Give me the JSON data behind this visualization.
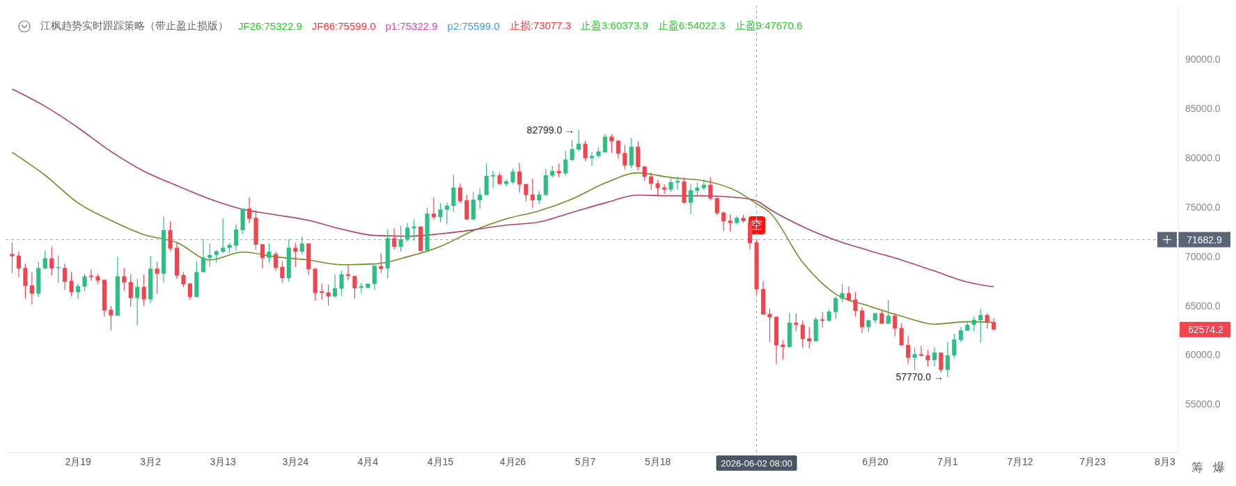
{
  "chart_data": {
    "type": "candlestick",
    "title": "江枫趋势实时跟踪策略（带止盈止损版）",
    "x": [
      "2026-02-09",
      "2026-02-10",
      "2026-02-11",
      "2026-02-12",
      "2026-02-13",
      "2026-02-14",
      "2026-02-15",
      "2026-02-16",
      "2026-02-17",
      "2026-02-18",
      "2026-02-19",
      "2026-02-20",
      "2026-02-21",
      "2026-02-22",
      "2026-02-23",
      "2026-02-24",
      "2026-02-25",
      "2026-02-26",
      "2026-02-27",
      "2026-02-28",
      "2026-03-01",
      "2026-03-02",
      "2026-03-03",
      "2026-03-04",
      "2026-03-05",
      "2026-03-06",
      "2026-03-07",
      "2026-03-08",
      "2026-03-09",
      "2026-03-10",
      "2026-03-11",
      "2026-03-12",
      "2026-03-13",
      "2026-03-14",
      "2026-03-15",
      "2026-03-16",
      "2026-03-17",
      "2026-03-18",
      "2026-03-19",
      "2026-03-20",
      "2026-03-21",
      "2026-03-22",
      "2026-03-23",
      "2026-03-24",
      "2026-03-25",
      "2026-03-26",
      "2026-03-27",
      "2026-03-28",
      "2026-03-29",
      "2026-03-30",
      "2026-03-31",
      "2026-04-01",
      "2026-04-02",
      "2026-04-03",
      "2026-04-04",
      "2026-04-05",
      "2026-04-06",
      "2026-04-07",
      "2026-04-08",
      "2026-04-09",
      "2026-04-10",
      "2026-04-11",
      "2026-04-12",
      "2026-04-13",
      "2026-04-14",
      "2026-04-15",
      "2026-04-16",
      "2026-04-17",
      "2026-04-18",
      "2026-04-19",
      "2026-04-20",
      "2026-04-21",
      "2026-04-22",
      "2026-04-23",
      "2026-04-24",
      "2026-04-25",
      "2026-04-26",
      "2026-04-27",
      "2026-04-28",
      "2026-04-29",
      "2026-04-30",
      "2026-05-01",
      "2026-05-02",
      "2026-05-03",
      "2026-05-04",
      "2026-05-05",
      "2026-05-06",
      "2026-05-07",
      "2026-05-08",
      "2026-05-09",
      "2026-05-10",
      "2026-05-11",
      "2026-05-12",
      "2026-05-13",
      "2026-05-14",
      "2026-05-15",
      "2026-05-16",
      "2026-05-17",
      "2026-05-18",
      "2026-05-19",
      "2026-05-20",
      "2026-05-21",
      "2026-05-22",
      "2026-05-23",
      "2026-05-24",
      "2026-05-25",
      "2026-05-26",
      "2026-05-27",
      "2026-05-28",
      "2026-05-29",
      "2026-05-30",
      "2026-05-31",
      "2026-06-01",
      "2026-06-02",
      "2026-06-03",
      "2026-06-04",
      "2026-06-05",
      "2026-06-06",
      "2026-06-07",
      "2026-06-08",
      "2026-06-09",
      "2026-06-10",
      "2026-06-11",
      "2026-06-12",
      "2026-06-13",
      "2026-06-14",
      "2026-06-15",
      "2026-06-16",
      "2026-06-17",
      "2026-06-18",
      "2026-06-19",
      "2026-06-20",
      "2026-06-21",
      "2026-06-22",
      "2026-06-23",
      "2026-06-24",
      "2026-06-25",
      "2026-06-26",
      "2026-06-27",
      "2026-06-28",
      "2026-06-29",
      "2026-06-30",
      "2026-07-01",
      "2026-07-02",
      "2026-07-03",
      "2026-07-04",
      "2026-07-05",
      "2026-07-06",
      "2026-07-07",
      "2026-07-08"
    ],
    "ohlc": [
      [
        70230,
        71410,
        68290,
        69990
      ],
      [
        70060,
        70490,
        67890,
        68760
      ],
      [
        68810,
        69240,
        65740,
        66990
      ],
      [
        67040,
        68390,
        65100,
        66210
      ],
      [
        66210,
        69420,
        65860,
        68810
      ],
      [
        68760,
        70580,
        68720,
        69800
      ],
      [
        69800,
        70940,
        68060,
        68760
      ],
      [
        68790,
        70090,
        67300,
        68900
      ],
      [
        68810,
        69240,
        66590,
        67420
      ],
      [
        67510,
        68410,
        65930,
        66350
      ],
      [
        66350,
        67250,
        65650,
        66970
      ],
      [
        66920,
        68240,
        66450,
        67960
      ],
      [
        68030,
        68650,
        67510,
        67890
      ],
      [
        67960,
        68220,
        67160,
        67540
      ],
      [
        67610,
        67610,
        63870,
        64510
      ],
      [
        64580,
        64960,
        62480,
        63990
      ],
      [
        63970,
        69950,
        63970,
        67960
      ],
      [
        67960,
        68790,
        66500,
        67350
      ],
      [
        67390,
        68170,
        64870,
        65760
      ],
      [
        65760,
        67720,
        62980,
        66900
      ],
      [
        66900,
        68150,
        64980,
        65640
      ],
      [
        65640,
        70040,
        65270,
        68740
      ],
      [
        68740,
        69420,
        66170,
        68220
      ],
      [
        68220,
        74010,
        67350,
        72640
      ],
      [
        72640,
        73530,
        70530,
        70770
      ],
      [
        70860,
        71360,
        67700,
        68030
      ],
      [
        68100,
        68390,
        66870,
        67160
      ],
      [
        67250,
        67250,
        65570,
        65860
      ],
      [
        65860,
        69470,
        65860,
        68390
      ],
      [
        68390,
        71760,
        68390,
        69870
      ],
      [
        69800,
        71290,
        68930,
        70130
      ],
      [
        70130,
        70650,
        69350,
        70510
      ],
      [
        70440,
        73840,
        70320,
        70860
      ],
      [
        70840,
        71360,
        70320,
        71150
      ],
      [
        71080,
        73250,
        70530,
        72710
      ],
      [
        72640,
        74830,
        72240,
        74830
      ],
      [
        74830,
        75970,
        73370,
        73790
      ],
      [
        73890,
        74670,
        70700,
        71170
      ],
      [
        71220,
        71220,
        68760,
        69830
      ],
      [
        69830,
        71290,
        69350,
        70460
      ],
      [
        70230,
        70460,
        68530,
        68830
      ],
      [
        68930,
        69470,
        67300,
        67770
      ],
      [
        67770,
        71760,
        67390,
        70860
      ],
      [
        70860,
        71360,
        68880,
        70460
      ],
      [
        70460,
        71990,
        70180,
        71290
      ],
      [
        71290,
        71290,
        68100,
        68690
      ],
      [
        68740,
        68740,
        65500,
        66280
      ],
      [
        66450,
        67230,
        65575,
        66280
      ],
      [
        66330,
        67110,
        64985,
        65930
      ],
      [
        65930,
        68170,
        65810,
        66760
      ],
      [
        66710,
        68530,
        66000,
        68170
      ],
      [
        68170,
        69120,
        67580,
        68010
      ],
      [
        68010,
        68010,
        65690,
        66760
      ],
      [
        66800,
        67300,
        66240,
        66970
      ],
      [
        66800,
        67230,
        66760,
        67230
      ],
      [
        67180,
        69050,
        66590,
        69050
      ],
      [
        69000,
        70300,
        68290,
        68720
      ],
      [
        68770,
        72730,
        67770,
        71830
      ],
      [
        71830,
        72830,
        70700,
        70960
      ],
      [
        70960,
        73090,
        70460,
        71720
      ],
      [
        71670,
        73370,
        71480,
        72900
      ],
      [
        72830,
        73770,
        71600,
        73010
      ],
      [
        73010,
        73010,
        70540,
        70540
      ],
      [
        70580,
        74910,
        70580,
        74320
      ],
      [
        74320,
        75970,
        73720,
        73960
      ],
      [
        73960,
        75380,
        73440,
        74740
      ],
      [
        74720,
        75420,
        73250,
        75140
      ],
      [
        75100,
        78260,
        74480,
        76960
      ],
      [
        76960,
        77390,
        75380,
        75570
      ],
      [
        75660,
        76200,
        73720,
        73720
      ],
      [
        73720,
        76510,
        73720,
        75730
      ],
      [
        75660,
        76910,
        74790,
        76250
      ],
      [
        76200,
        79390,
        76200,
        78140
      ],
      [
        78090,
        78640,
        76910,
        78210
      ],
      [
        78210,
        78500,
        77220,
        77320
      ],
      [
        77320,
        77790,
        77080,
        77600
      ],
      [
        77500,
        78870,
        77320,
        78590
      ],
      [
        78590,
        79440,
        76440,
        77270
      ],
      [
        77320,
        77320,
        75610,
        76200
      ],
      [
        76250,
        77860,
        74910,
        75660
      ],
      [
        75660,
        76600,
        75260,
        76250
      ],
      [
        76200,
        78870,
        76200,
        78210
      ],
      [
        78160,
        79160,
        77980,
        78640
      ],
      [
        78640,
        79390,
        78020,
        78400
      ],
      [
        78400,
        80690,
        78160,
        79800
      ],
      [
        79750,
        81760,
        79680,
        80860
      ],
      [
        80810,
        82799,
        80620,
        81400
      ],
      [
        81400,
        81710,
        79650,
        79940
      ],
      [
        79940,
        80570,
        79160,
        80150
      ],
      [
        80150,
        81050,
        79980,
        80620
      ],
      [
        80530,
        82390,
        80460,
        82110
      ],
      [
        82110,
        82390,
        80460,
        81640
      ],
      [
        81710,
        81710,
        79860,
        80390
      ],
      [
        80460,
        81280,
        78800,
        79200
      ],
      [
        79200,
        82000,
        78920,
        81090
      ],
      [
        81090,
        81640,
        78680,
        79040
      ],
      [
        79090,
        79160,
        77620,
        78050
      ],
      [
        78090,
        78500,
        76730,
        77340
      ],
      [
        77390,
        77740,
        76080,
        76910
      ],
      [
        76960,
        77270,
        76320,
        76750
      ],
      [
        76750,
        77860,
        76510,
        77500
      ],
      [
        77460,
        78090,
        76730,
        77620
      ],
      [
        77570,
        77970,
        75320,
        75420
      ],
      [
        75420,
        77310,
        74240,
        76680
      ],
      [
        76630,
        77460,
        76040,
        76960
      ],
      [
        76910,
        77790,
        76680,
        77240
      ],
      [
        77240,
        78020,
        75660,
        75850
      ],
      [
        75900,
        75900,
        74200,
        74360
      ],
      [
        74430,
        74550,
        72540,
        73540
      ],
      [
        73610,
        74240,
        72500,
        73370
      ],
      [
        73370,
        74080,
        73200,
        73890
      ],
      [
        73890,
        74200,
        73370,
        73560
      ],
      [
        73400,
        73700,
        70700,
        71320
      ],
      [
        71410,
        71600,
        66170,
        66640
      ],
      [
        66680,
        67460,
        64090,
        64090
      ],
      [
        64160,
        64700,
        61320,
        63800
      ],
      [
        63850,
        63920,
        59080,
        60970
      ],
      [
        61040,
        61490,
        59500,
        60800
      ],
      [
        60800,
        64275,
        60730,
        63260
      ],
      [
        63260,
        64200,
        62390,
        63050
      ],
      [
        63050,
        63500,
        60730,
        61610
      ],
      [
        61680,
        62810,
        60680,
        61390
      ],
      [
        61390,
        63850,
        61390,
        63610
      ],
      [
        63610,
        64340,
        62790,
        63450
      ],
      [
        63450,
        64630,
        63450,
        64390
      ],
      [
        64350,
        65930,
        63640,
        65740
      ],
      [
        65690,
        67230,
        65340,
        66260
      ],
      [
        66260,
        66940,
        65410,
        65570
      ],
      [
        65620,
        66380,
        63880,
        64460
      ],
      [
        64510,
        64800,
        62220,
        62810
      ],
      [
        62810,
        63520,
        62310,
        63520
      ],
      [
        63500,
        64230,
        63210,
        64230
      ],
      [
        64230,
        64560,
        63160,
        63160
      ],
      [
        63160,
        65570,
        63160,
        63970
      ],
      [
        63970,
        64230,
        61870,
        62670
      ],
      [
        62720,
        63210,
        60970,
        60970
      ],
      [
        61010,
        61910,
        59080,
        59710
      ],
      [
        59710,
        60730,
        58490,
        60070
      ],
      [
        60070,
        60920,
        59840,
        59910
      ],
      [
        59950,
        60500,
        58840,
        59480
      ],
      [
        59480,
        60780,
        58840,
        60240
      ],
      [
        60240,
        60240,
        58180,
        58490
      ],
      [
        58490,
        61320,
        57770,
        59950
      ],
      [
        59950,
        62150,
        59670,
        61560
      ],
      [
        61510,
        62860,
        61280,
        62500
      ],
      [
        62460,
        63450,
        62390,
        63050
      ],
      [
        63050,
        63920,
        62390,
        63570
      ],
      [
        63520,
        64700,
        61250,
        64040
      ],
      [
        64040,
        64230,
        62670,
        63280
      ],
      [
        63330,
        63690,
        62460,
        62574.2
      ]
    ],
    "series": [
      {
        "type": "line",
        "color": "#6b8e23",
        "x": [
          "2026-02-09",
          "2026-02-14",
          "2026-02-19",
          "2026-02-24",
          "2026-03-01",
          "2026-03-06",
          "2026-03-11",
          "2026-03-16",
          "2026-03-21",
          "2026-03-26",
          "2026-03-31",
          "2026-04-05",
          "2026-04-10",
          "2026-04-15",
          "2026-04-20",
          "2026-04-25",
          "2026-04-30",
          "2026-05-05",
          "2026-05-10",
          "2026-05-15",
          "2026-05-20",
          "2026-05-25",
          "2026-05-30",
          "2026-06-02",
          "2026-06-04",
          "2026-06-09",
          "2026-06-14",
          "2026-06-19",
          "2026-06-24",
          "2026-06-29",
          "2026-07-04",
          "2026-07-08"
        ],
        "values": [
          80530,
          78210,
          75400,
          73630,
          72190,
          71390,
          69620,
          70420,
          69940,
          69620,
          69140,
          69220,
          69940,
          70990,
          72590,
          73790,
          74600,
          75800,
          77410,
          78450,
          77970,
          77650,
          76600,
          75320,
          74440,
          69380,
          66170,
          64970,
          63930,
          63120,
          63370,
          63290
        ]
      },
      {
        "type": "line",
        "color": "#b0405a",
        "x": [
          "2026-02-09",
          "2026-02-14",
          "2026-02-19",
          "2026-02-24",
          "2026-03-01",
          "2026-03-06",
          "2026-03-11",
          "2026-03-16",
          "2026-03-21",
          "2026-03-26",
          "2026-03-31",
          "2026-04-05",
          "2026-04-10",
          "2026-04-15",
          "2026-04-20",
          "2026-04-25",
          "2026-04-30",
          "2026-05-05",
          "2026-05-10",
          "2026-05-15",
          "2026-05-20",
          "2026-05-25",
          "2026-05-30",
          "2026-06-02",
          "2026-06-04",
          "2026-06-09",
          "2026-06-14",
          "2026-06-19",
          "2026-06-24",
          "2026-06-29",
          "2026-07-04",
          "2026-07-08"
        ],
        "values": [
          86950,
          85190,
          83020,
          80610,
          78610,
          77160,
          75800,
          74760,
          74200,
          73630,
          72750,
          72110,
          72030,
          72270,
          72670,
          73150,
          73470,
          74440,
          75400,
          76200,
          76120,
          76120,
          75960,
          75600,
          74760,
          73000,
          71630,
          70590,
          69620,
          68500,
          67380,
          66900
        ]
      }
    ],
    "xlim": [
      "2026-02-08",
      "2026-08-05"
    ],
    "xticks": [
      {
        "value": "2026-02-19",
        "label": "2月19"
      },
      {
        "value": "2026-03-02",
        "label": "3月2"
      },
      {
        "value": "2026-03-13",
        "label": "3月13"
      },
      {
        "value": "2026-03-24",
        "label": "3月24"
      },
      {
        "value": "2026-04-04",
        "label": "4月4"
      },
      {
        "value": "2026-04-15",
        "label": "4月15"
      },
      {
        "value": "2026-04-26",
        "label": "4月26"
      },
      {
        "value": "2026-05-07",
        "label": "5月7"
      },
      {
        "value": "2026-05-18",
        "label": "5月18"
      },
      {
        "value": "2026-06-20",
        "label": "6月20"
      },
      {
        "value": "2026-07-01",
        "label": "7月1"
      },
      {
        "value": "2026-07-12",
        "label": "7月12"
      },
      {
        "value": "2026-07-23",
        "label": "7月23"
      },
      {
        "value": "2026-08-03",
        "label": "8月3"
      }
    ],
    "ylim": [
      50100,
      95400
    ],
    "yticks": [
      {
        "value": 55000,
        "label": "55000.0"
      },
      {
        "value": 60000,
        "label": "60000.0"
      },
      {
        "value": 62574.2,
        "label": "62574.2"
      },
      {
        "value": 65000,
        "label": "65000.0"
      },
      {
        "value": 70000,
        "label": "70000.0"
      },
      {
        "value": 75000,
        "label": "75000.0"
      },
      {
        "value": 80000,
        "label": "80000.0"
      },
      {
        "value": 85000,
        "label": "85000.0"
      },
      {
        "value": 90000,
        "label": "90000.0"
      }
    ],
    "ref_lines": [
      {
        "axis": "x",
        "value": "2026-06-02",
        "label": "2026-06-02 08:00",
        "line_style": "dashed",
        "color": "#9aa3b0"
      },
      {
        "axis": "y",
        "value": 71682.9,
        "label": "71682.9",
        "line_style": "dashed",
        "color": "#9aa3b0"
      }
    ],
    "annotations": [
      "JF26:75322.9",
      "JF66:75599.0",
      "p1:75322.9",
      "p2:75599.0",
      "止损:73077.3",
      "止盈3:60373.9",
      "止盈6:54022.3",
      "止盈9:47670.6",
      "筹",
      "爆",
      {
        "text": "82799.0 →",
        "x": "2026-05-06",
        "y": 82799
      },
      {
        "text": "57770.0 →",
        "x": "2026-07-01",
        "y": 57770
      },
      {
        "text": "空",
        "x": "2026-06-02",
        "y": 73130
      }
    ]
  }
}
